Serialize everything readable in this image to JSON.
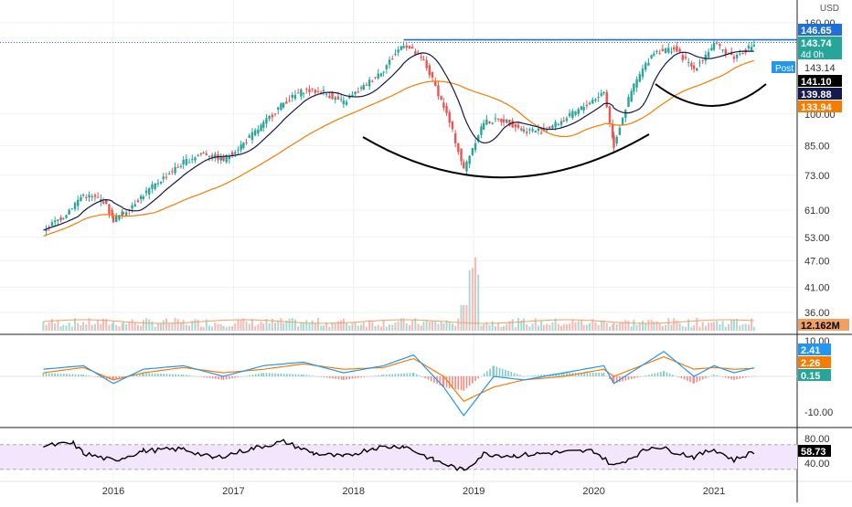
{
  "chart_data": [
    {
      "type": "candlestick",
      "title": "",
      "currency": "USD",
      "scale": "log",
      "y_ticks": [
        160.0,
        146.65,
        143.74,
        141.1,
        139.88,
        133.94,
        100.0,
        85.0,
        73.0,
        61.0,
        53.0,
        47.0,
        41.0,
        36.0
      ],
      "x_ticks": [
        "2016",
        "2017",
        "2018",
        "2019",
        "2020",
        "2021"
      ],
      "price_labels": [
        {
          "text": "146.65",
          "color": "#1e6fd9"
        },
        {
          "text": "143.74",
          "sub": "4d 0h",
          "color": "#26a69a"
        },
        {
          "text": "Post",
          "value": "143.14",
          "color": "#2196f3"
        },
        {
          "text": "141.10",
          "color": "#000000"
        },
        {
          "text": "139.88",
          "color": "#131a4e"
        },
        {
          "text": "133.94",
          "color": "#f57c00"
        }
      ],
      "resistance_level": 146.65,
      "closes": [
        {
          "x": "2015-06",
          "y": 55
        },
        {
          "x": "2015-08",
          "y": 59
        },
        {
          "x": "2015-10",
          "y": 66
        },
        {
          "x": "2015-12",
          "y": 64
        },
        {
          "x": "2016-01",
          "y": 58
        },
        {
          "x": "2016-02",
          "y": 60
        },
        {
          "x": "2016-04",
          "y": 66
        },
        {
          "x": "2016-06",
          "y": 72
        },
        {
          "x": "2016-08",
          "y": 78
        },
        {
          "x": "2016-10",
          "y": 82
        },
        {
          "x": "2016-12",
          "y": 79
        },
        {
          "x": "2017-02",
          "y": 86
        },
        {
          "x": "2017-04",
          "y": 95
        },
        {
          "x": "2017-06",
          "y": 106
        },
        {
          "x": "2017-08",
          "y": 113
        },
        {
          "x": "2017-10",
          "y": 112
        },
        {
          "x": "2017-12",
          "y": 106
        },
        {
          "x": "2018-02",
          "y": 115
        },
        {
          "x": "2018-04",
          "y": 126
        },
        {
          "x": "2018-06",
          "y": 144
        },
        {
          "x": "2018-08",
          "y": 131
        },
        {
          "x": "2018-10",
          "y": 104
        },
        {
          "x": "2018-12",
          "y": 75
        },
        {
          "x": "2019-02",
          "y": 96
        },
        {
          "x": "2019-04",
          "y": 97
        },
        {
          "x": "2019-06",
          "y": 92
        },
        {
          "x": "2019-08",
          "y": 92
        },
        {
          "x": "2019-10",
          "y": 97
        },
        {
          "x": "2019-12",
          "y": 104
        },
        {
          "x": "2020-02",
          "y": 112
        },
        {
          "x": "2020-03",
          "y": 85
        },
        {
          "x": "2020-05",
          "y": 116
        },
        {
          "x": "2020-07",
          "y": 138
        },
        {
          "x": "2020-09",
          "y": 140
        },
        {
          "x": "2020-11",
          "y": 126
        },
        {
          "x": "2021-01",
          "y": 143
        },
        {
          "x": "2021-03",
          "y": 134
        },
        {
          "x": "2021-05",
          "y": 143
        }
      ],
      "ma_fast_last": 139.88,
      "ma_slow_last": 133.94,
      "volume_label": "12.162M"
    },
    {
      "type": "line",
      "indicator": "MACD",
      "y_ticks": [
        10.0,
        -10.0
      ],
      "labels": [
        {
          "text": "2.41",
          "color": "#2196f3"
        },
        {
          "text": "2.26",
          "color": "#f57c00"
        },
        {
          "text": "0.15",
          "color": "#26a69a"
        }
      ],
      "macd": [
        {
          "x": "2015-06",
          "y": 2
        },
        {
          "x": "2015-10",
          "y": 3
        },
        {
          "x": "2016-01",
          "y": -2
        },
        {
          "x": "2016-04",
          "y": 2
        },
        {
          "x": "2016-08",
          "y": 3
        },
        {
          "x": "2016-12",
          "y": 0
        },
        {
          "x": "2017-04",
          "y": 3
        },
        {
          "x": "2017-08",
          "y": 4
        },
        {
          "x": "2017-12",
          "y": 1
        },
        {
          "x": "2018-04",
          "y": 3
        },
        {
          "x": "2018-07",
          "y": 6
        },
        {
          "x": "2018-10",
          "y": -3
        },
        {
          "x": "2018-12",
          "y": -11
        },
        {
          "x": "2019-03",
          "y": 0
        },
        {
          "x": "2019-06",
          "y": -1
        },
        {
          "x": "2019-10",
          "y": 1
        },
        {
          "x": "2020-02",
          "y": 3
        },
        {
          "x": "2020-03",
          "y": -2
        },
        {
          "x": "2020-08",
          "y": 7
        },
        {
          "x": "2020-11",
          "y": 0
        },
        {
          "x": "2021-01",
          "y": 3
        },
        {
          "x": "2021-03",
          "y": 1
        },
        {
          "x": "2021-05",
          "y": 2.41
        }
      ],
      "signal": [
        {
          "x": "2015-06",
          "y": 1
        },
        {
          "x": "2015-10",
          "y": 2.5
        },
        {
          "x": "2016-01",
          "y": -1
        },
        {
          "x": "2016-04",
          "y": 1
        },
        {
          "x": "2016-08",
          "y": 2.5
        },
        {
          "x": "2016-12",
          "y": 1
        },
        {
          "x": "2017-04",
          "y": 2
        },
        {
          "x": "2017-08",
          "y": 3.5
        },
        {
          "x": "2017-12",
          "y": 2
        },
        {
          "x": "2018-04",
          "y": 2.5
        },
        {
          "x": "2018-07",
          "y": 5
        },
        {
          "x": "2018-10",
          "y": 0
        },
        {
          "x": "2018-12",
          "y": -7
        },
        {
          "x": "2019-03",
          "y": -3
        },
        {
          "x": "2019-06",
          "y": -1
        },
        {
          "x": "2019-10",
          "y": 0
        },
        {
          "x": "2020-02",
          "y": 2
        },
        {
          "x": "2020-03",
          "y": 0
        },
        {
          "x": "2020-08",
          "y": 5.5
        },
        {
          "x": "2020-11",
          "y": 2
        },
        {
          "x": "2021-01",
          "y": 2.5
        },
        {
          "x": "2021-03",
          "y": 2
        },
        {
          "x": "2021-05",
          "y": 2.26
        }
      ]
    },
    {
      "type": "line",
      "indicator": "RSI",
      "y_ticks": [
        80.0,
        40.0
      ],
      "label": {
        "text": "58.73",
        "color": "#000000"
      },
      "band": [
        30,
        70
      ],
      "rsi": [
        {
          "x": "2015-06",
          "y": 68
        },
        {
          "x": "2015-09",
          "y": 72
        },
        {
          "x": "2015-10",
          "y": 56
        },
        {
          "x": "2016-01",
          "y": 44
        },
        {
          "x": "2016-04",
          "y": 60
        },
        {
          "x": "2016-08",
          "y": 63
        },
        {
          "x": "2016-11",
          "y": 48
        },
        {
          "x": "2017-03",
          "y": 64
        },
        {
          "x": "2017-06",
          "y": 75
        },
        {
          "x": "2017-09",
          "y": 56
        },
        {
          "x": "2017-12",
          "y": 50
        },
        {
          "x": "2018-03",
          "y": 65
        },
        {
          "x": "2018-06",
          "y": 68
        },
        {
          "x": "2018-09",
          "y": 45
        },
        {
          "x": "2018-12",
          "y": 28
        },
        {
          "x": "2019-02",
          "y": 55
        },
        {
          "x": "2019-05",
          "y": 52
        },
        {
          "x": "2019-09",
          "y": 57
        },
        {
          "x": "2020-01",
          "y": 60
        },
        {
          "x": "2020-03",
          "y": 35
        },
        {
          "x": "2020-07",
          "y": 68
        },
        {
          "x": "2020-11",
          "y": 50
        },
        {
          "x": "2021-01",
          "y": 63
        },
        {
          "x": "2021-03",
          "y": 45
        },
        {
          "x": "2021-05",
          "y": 58.73
        }
      ]
    }
  ]
}
